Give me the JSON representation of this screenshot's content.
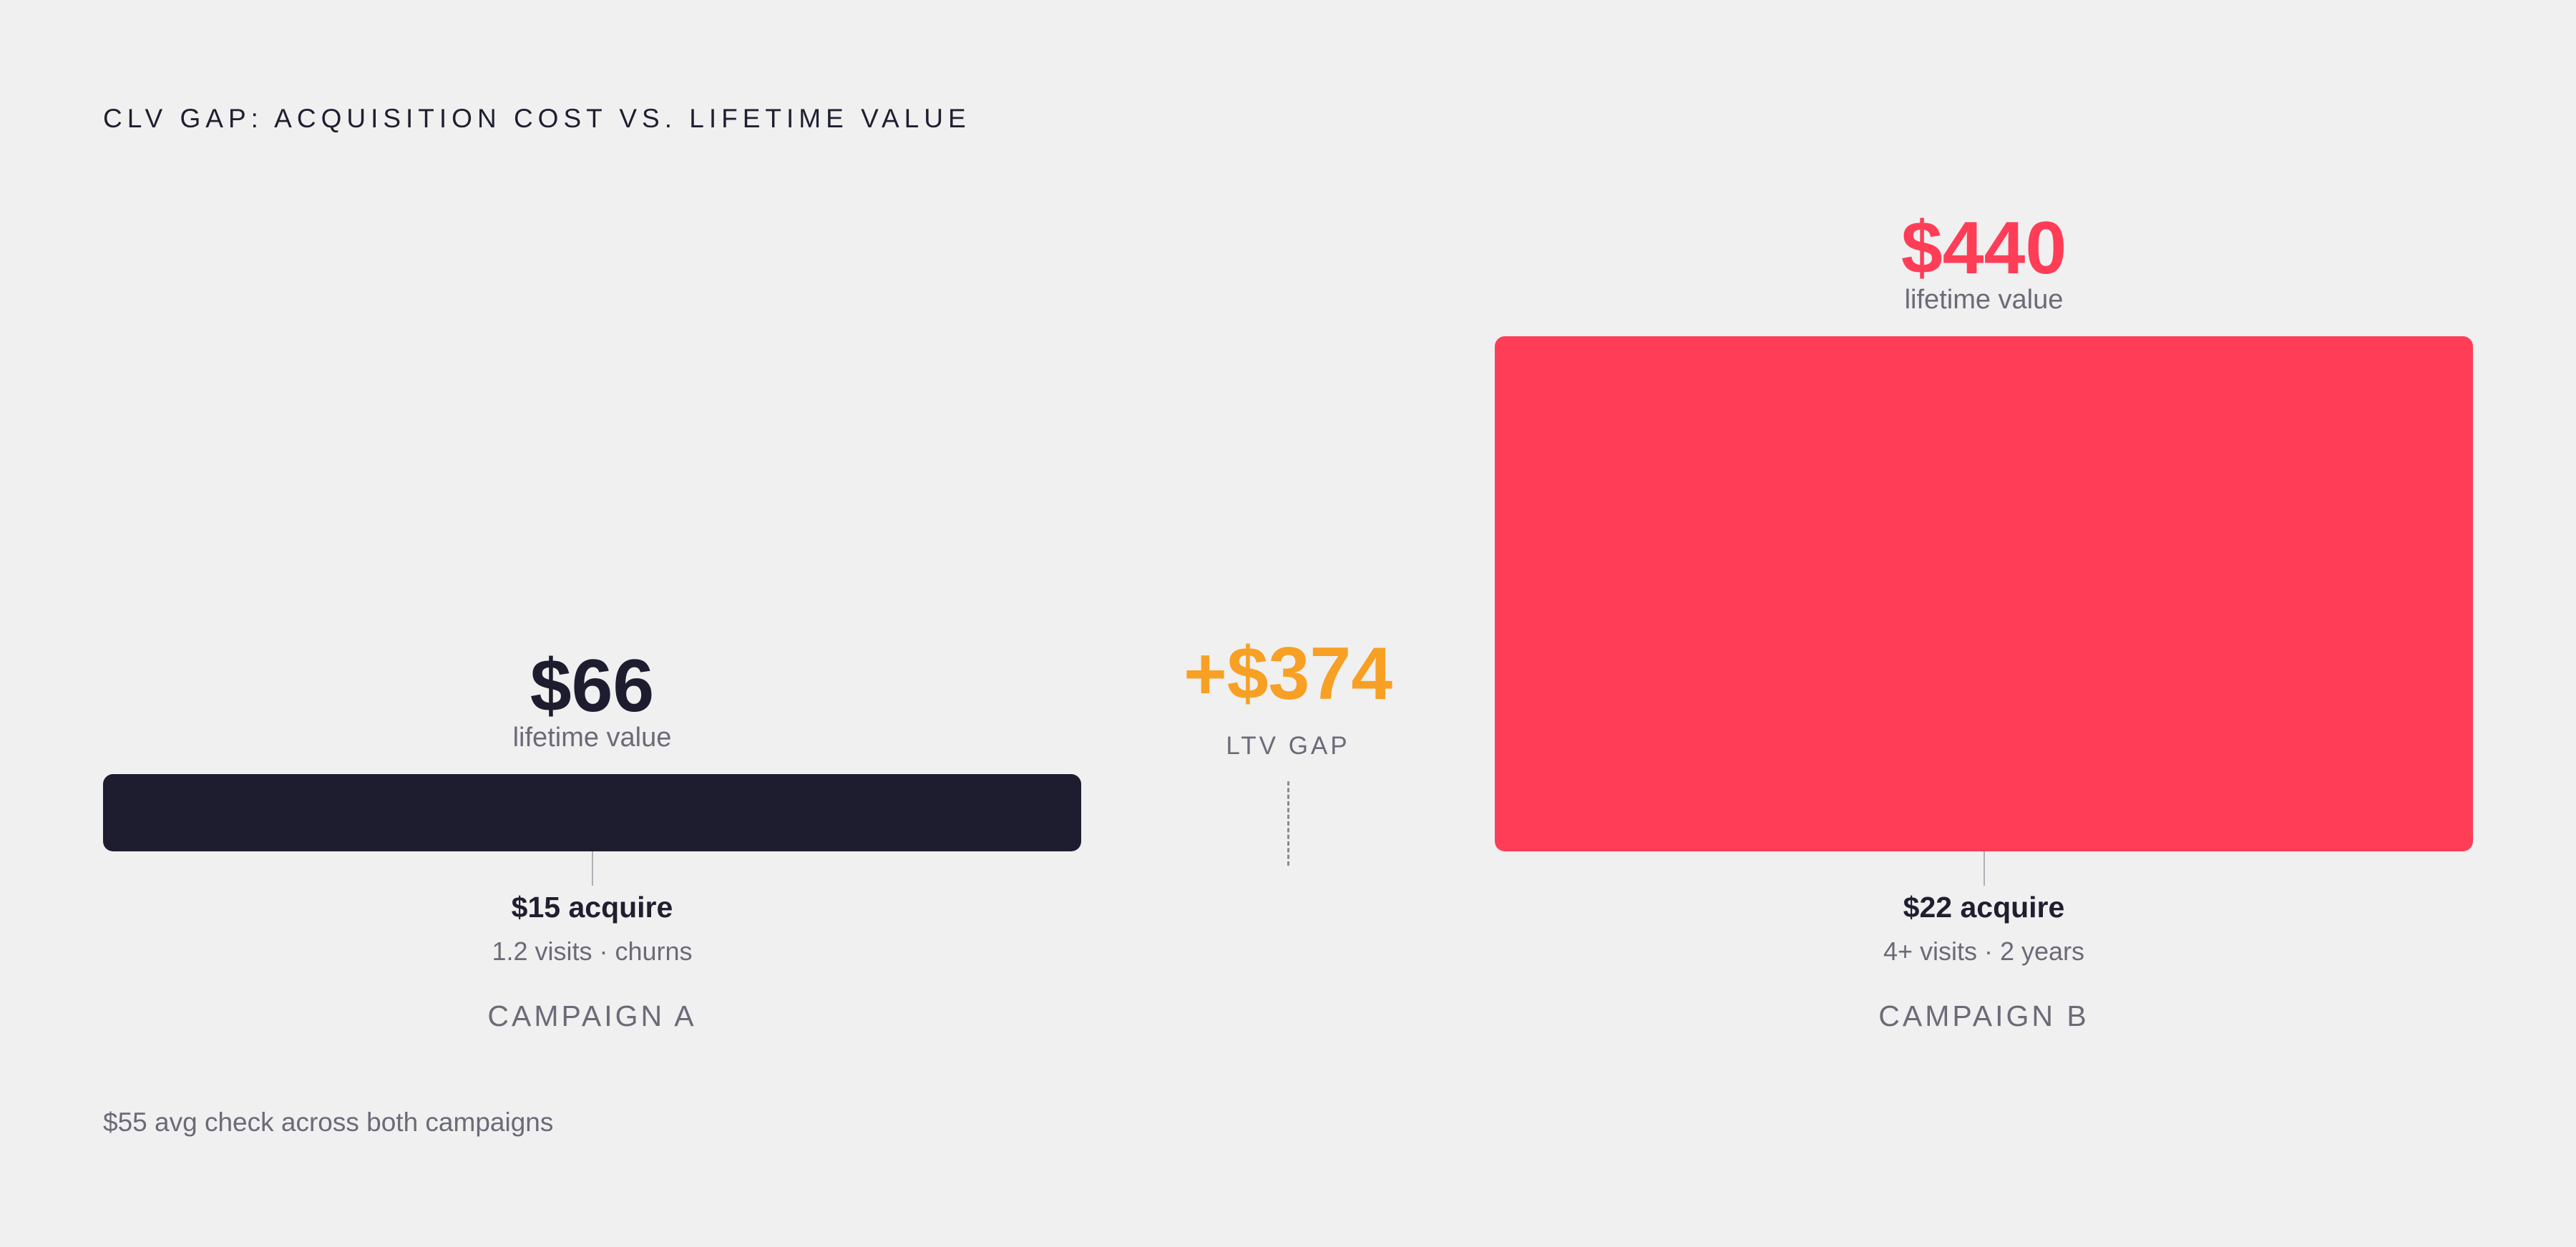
{
  "chart_data": {
    "type": "bar",
    "title": "CLV GAP: ACQUISITION COST VS. LIFETIME VALUE",
    "categories": [
      "CAMPAIGN A",
      "CAMPAIGN B"
    ],
    "series": [
      {
        "values": [
          66,
          440
        ]
      }
    ],
    "bars": [
      {
        "campaign": "CAMPAIGN A",
        "value": 66,
        "value_label": "$66",
        "value_caption": "lifetime value",
        "acquire_label": "$15 acquire",
        "detail": "1.2 visits · churns",
        "color": "#1e1d30"
      },
      {
        "campaign": "CAMPAIGN B",
        "value": 440,
        "value_label": "$440",
        "value_caption": "lifetime value",
        "acquire_label": "$22 acquire",
        "detail": "4+ visits · 2 years",
        "color": "#ff3d57"
      }
    ],
    "gap": {
      "value": 374,
      "label": "+$374",
      "caption": "LTV GAP",
      "color": "#f7a024"
    },
    "footnote": "$55 avg check across both campaigns"
  }
}
